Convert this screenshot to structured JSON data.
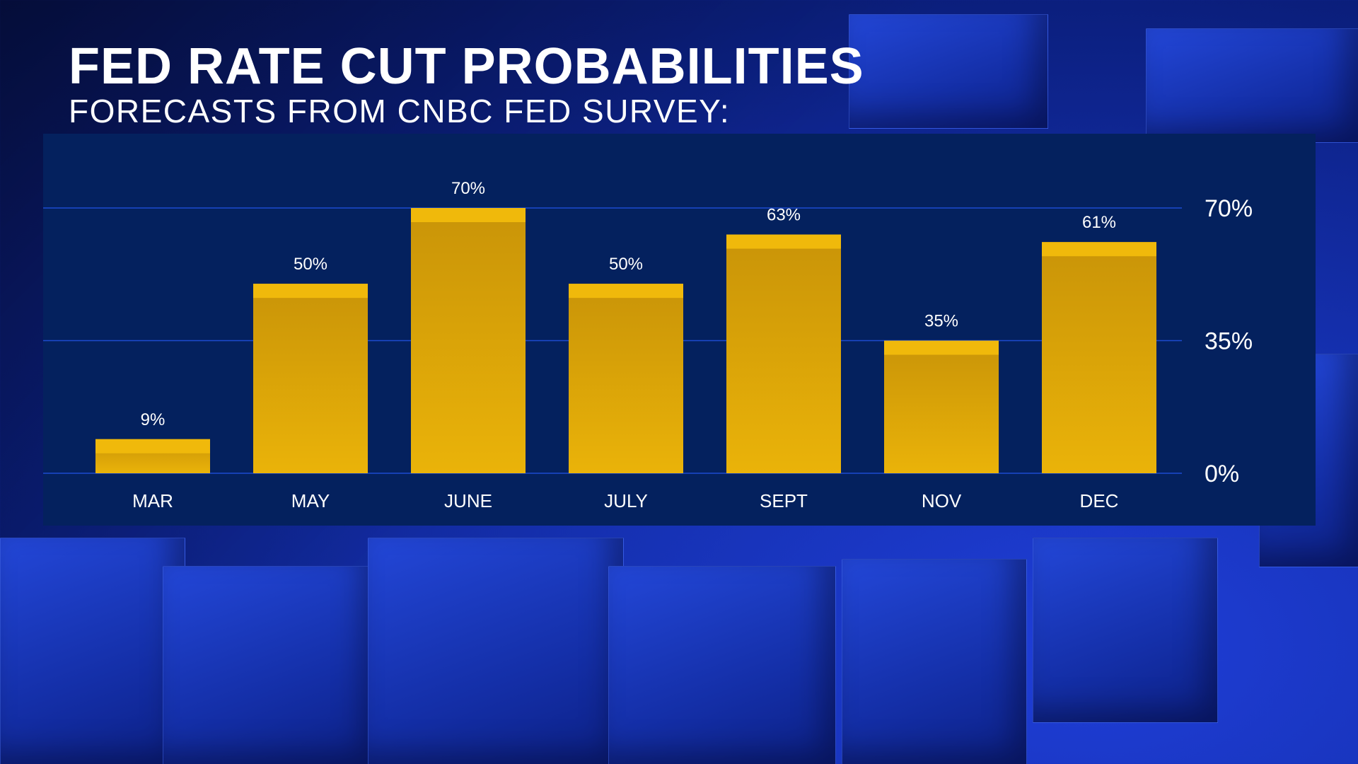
{
  "header": {
    "title": "FED RATE CUT PROBABILITIES",
    "subtitle": "FORECASTS FROM CNBC FED SURVEY:"
  },
  "colors": {
    "panel": "#04215e",
    "bar_top": "#f0b90b",
    "bar_body": "#d49c08",
    "gridline": "#1d4bd0"
  },
  "chart_data": {
    "type": "bar",
    "title": "FED RATE CUT PROBABILITIES",
    "subtitle": "FORECASTS FROM CNBC FED SURVEY:",
    "categories": [
      "MAR",
      "MAY",
      "JUNE",
      "JULY",
      "SEPT",
      "NOV",
      "DEC"
    ],
    "values": [
      9,
      50,
      70,
      50,
      63,
      35,
      61
    ],
    "data_labels": [
      "9%",
      "50%",
      "70%",
      "50%",
      "63%",
      "35%",
      "61%"
    ],
    "ylim": [
      0,
      70
    ],
    "yticks": [
      0,
      35,
      70
    ],
    "ytick_labels": [
      "0%",
      "35%",
      "70%"
    ],
    "xlabel": "",
    "ylabel": "",
    "grid": true,
    "legend": "none"
  }
}
